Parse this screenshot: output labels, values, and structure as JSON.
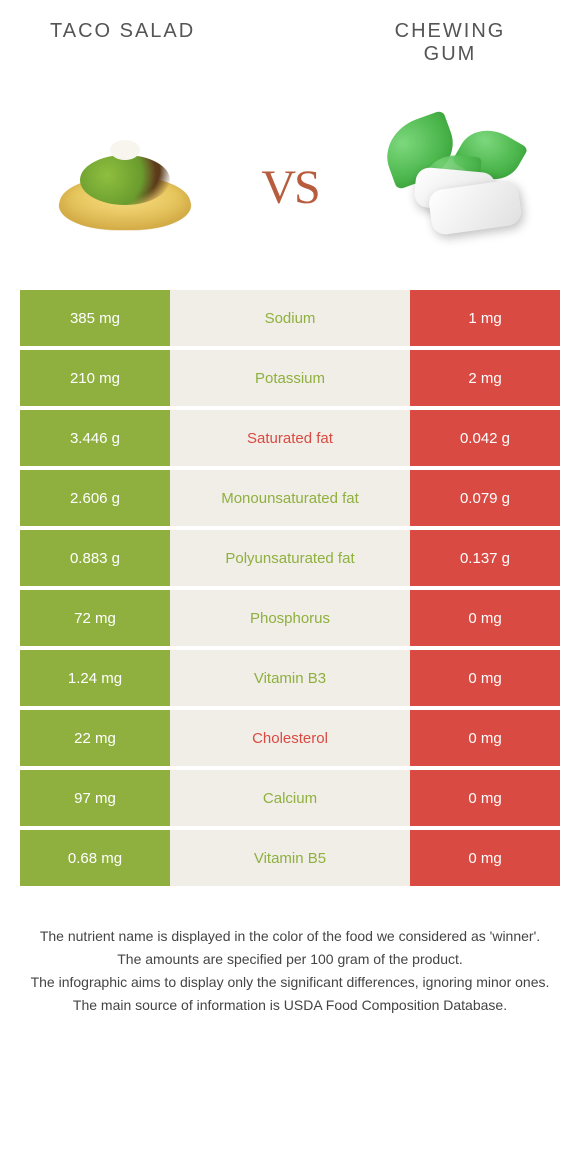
{
  "header": {
    "left_title": "Taco salad",
    "right_title": "Chewing gum",
    "vs_text": "vs"
  },
  "colors": {
    "left_bar": "#8fb03e",
    "right_bar": "#d94a43",
    "mid_bg": "#f0eee7",
    "label_left_win": "#8fb03e",
    "label_right_win": "#d94a43"
  },
  "rows": [
    {
      "left": "385 mg",
      "label": "Sodium",
      "right": "1 mg",
      "winner": "left"
    },
    {
      "left": "210 mg",
      "label": "Potassium",
      "right": "2 mg",
      "winner": "left"
    },
    {
      "left": "3.446 g",
      "label": "Saturated fat",
      "right": "0.042 g",
      "winner": "right"
    },
    {
      "left": "2.606 g",
      "label": "Monounsaturated fat",
      "right": "0.079 g",
      "winner": "left"
    },
    {
      "left": "0.883 g",
      "label": "Polyunsaturated fat",
      "right": "0.137 g",
      "winner": "left"
    },
    {
      "left": "72 mg",
      "label": "Phosphorus",
      "right": "0 mg",
      "winner": "left"
    },
    {
      "left": "1.24 mg",
      "label": "Vitamin B3",
      "right": "0 mg",
      "winner": "left"
    },
    {
      "left": "22 mg",
      "label": "Cholesterol",
      "right": "0 mg",
      "winner": "right"
    },
    {
      "left": "97 mg",
      "label": "Calcium",
      "right": "0 mg",
      "winner": "left"
    },
    {
      "left": "0.68 mg",
      "label": "Vitamin B5",
      "right": "0 mg",
      "winner": "left"
    }
  ],
  "footnotes": [
    "The nutrient name is displayed in the color of the food we considered as 'winner'.",
    "The amounts are specified per 100 gram of the product.",
    "The infographic aims to display only the significant differences, ignoring minor ones.",
    "The main source of information is USDA Food Composition Database."
  ]
}
